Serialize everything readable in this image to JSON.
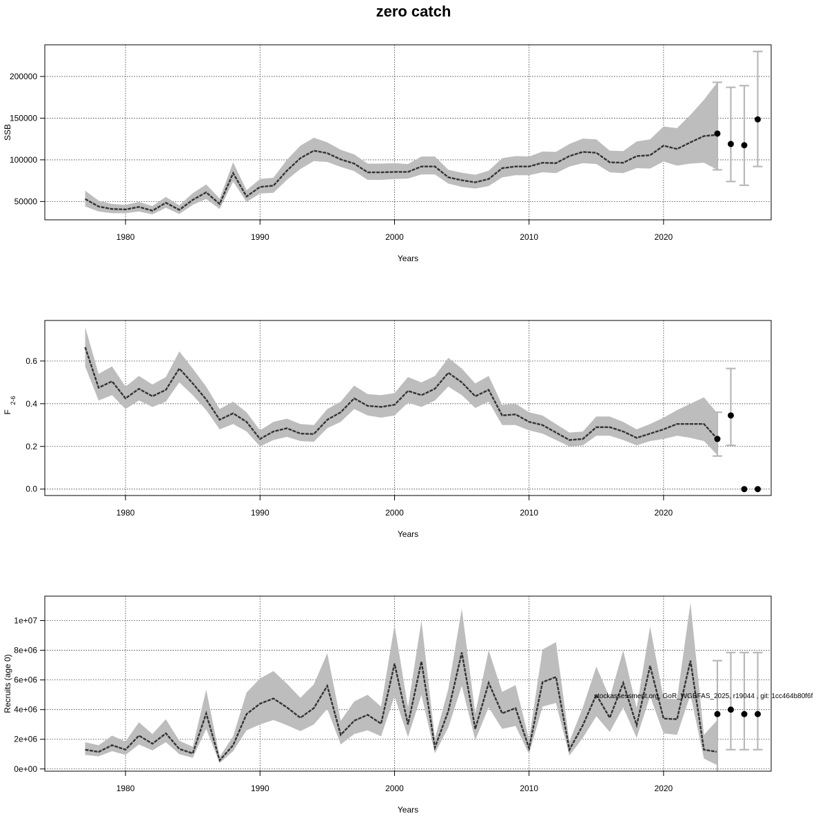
{
  "title": "zero catch",
  "watermark": "stockassessment.org, GoR_WGBFAS_2025, r19044 , git: 1cc464b80f6f",
  "colors": {
    "band": "#bdbdbd",
    "line": "#333333",
    "errorbar": "#b8b8b8",
    "point": "#000000",
    "grid": "#333333"
  },
  "chart_data": [
    {
      "type": "line",
      "xlabel": "Years",
      "ylabel": "SSB",
      "xlim": [
        1974,
        2028
      ],
      "ylim": [
        28000,
        238000
      ],
      "xticks": [
        1980,
        1990,
        2000,
        2010,
        2020
      ],
      "yticks": [
        50000,
        100000,
        150000,
        200000
      ],
      "ytick_labels": [
        "50000",
        "100000",
        "150000",
        "200000"
      ],
      "grid": true,
      "years": [
        1977,
        1978,
        1979,
        1980,
        1981,
        1982,
        1983,
        1984,
        1985,
        1986,
        1987,
        1988,
        1989,
        1990,
        1991,
        1992,
        1993,
        1994,
        1995,
        1996,
        1997,
        1998,
        1999,
        2000,
        2001,
        2002,
        2003,
        2004,
        2005,
        2006,
        2007,
        2008,
        2009,
        2010,
        2011,
        2012,
        2013,
        2014,
        2015,
        2016,
        2017,
        2018,
        2019,
        2020,
        2021,
        2022,
        2023,
        2024
      ],
      "estimate": [
        53000,
        44000,
        41000,
        40500,
        43500,
        39000,
        48500,
        40000,
        52000,
        61000,
        47000,
        84000,
        56000,
        67500,
        69000,
        87000,
        102000,
        111000,
        108000,
        100500,
        95500,
        85000,
        85000,
        85500,
        85500,
        92000,
        92000,
        79000,
        75500,
        73000,
        77000,
        90000,
        92000,
        92000,
        96500,
        96000,
        104500,
        109500,
        108500,
        97000,
        96500,
        104500,
        105500,
        117000,
        113000,
        121000,
        128500,
        130000
      ],
      "lower": [
        44000,
        38000,
        36000,
        36000,
        38000,
        34500,
        42500,
        35000,
        46000,
        53000,
        41000,
        74000,
        49500,
        59500,
        60500,
        76000,
        89000,
        98500,
        97500,
        91500,
        86500,
        76000,
        76000,
        77000,
        77500,
        82500,
        82500,
        71500,
        67500,
        65500,
        68500,
        79000,
        81500,
        81500,
        85000,
        84000,
        92000,
        96000,
        95000,
        85000,
        84000,
        90000,
        89500,
        98000,
        93000,
        95500,
        96500,
        88000
      ],
      "upper": [
        63000,
        51000,
        47000,
        46000,
        49500,
        44500,
        55500,
        45500,
        60000,
        70500,
        53500,
        97000,
        63500,
        77000,
        78500,
        100000,
        117000,
        126500,
        121000,
        112000,
        106500,
        95500,
        95500,
        96000,
        95000,
        104000,
        104000,
        88000,
        84500,
        82000,
        87000,
        102000,
        104500,
        104000,
        110000,
        109500,
        119000,
        125500,
        124500,
        111000,
        110500,
        122000,
        124500,
        140000,
        138000,
        154000,
        172000,
        193000
      ],
      "projections": [
        {
          "year": 2024,
          "value": 131500,
          "lower": 88000,
          "upper": 193000
        },
        {
          "year": 2025,
          "value": 119000,
          "lower": 74000,
          "upper": 187000
        },
        {
          "year": 2026,
          "value": 117500,
          "lower": 69500,
          "upper": 189000
        },
        {
          "year": 2027,
          "value": 148500,
          "lower": 92000,
          "upper": 230000
        }
      ]
    },
    {
      "type": "line",
      "xlabel": "Years",
      "ylabel": "F",
      "ylabel_sub": "2-6",
      "xlim": [
        1974,
        2028
      ],
      "ylim": [
        -0.03,
        0.79
      ],
      "xticks": [
        1980,
        1990,
        2000,
        2010,
        2020
      ],
      "yticks": [
        0.0,
        0.2,
        0.4,
        0.6
      ],
      "ytick_labels": [
        "0.0",
        "0.2",
        "0.4",
        "0.6"
      ],
      "grid": true,
      "years": [
        1977,
        1978,
        1979,
        1980,
        1981,
        1982,
        1983,
        1984,
        1985,
        1986,
        1987,
        1988,
        1989,
        1990,
        1991,
        1992,
        1993,
        1994,
        1995,
        1996,
        1997,
        1998,
        1999,
        2000,
        2001,
        2002,
        2003,
        2004,
        2005,
        2006,
        2007,
        2008,
        2009,
        2010,
        2011,
        2012,
        2013,
        2014,
        2015,
        2016,
        2017,
        2018,
        2019,
        2020,
        2021,
        2022,
        2023,
        2024
      ],
      "estimate": [
        0.665,
        0.475,
        0.505,
        0.425,
        0.47,
        0.435,
        0.465,
        0.565,
        0.495,
        0.42,
        0.325,
        0.355,
        0.315,
        0.235,
        0.27,
        0.285,
        0.26,
        0.258,
        0.325,
        0.36,
        0.425,
        0.39,
        0.385,
        0.395,
        0.46,
        0.44,
        0.47,
        0.545,
        0.5,
        0.435,
        0.465,
        0.345,
        0.35,
        0.315,
        0.3,
        0.265,
        0.23,
        0.235,
        0.29,
        0.29,
        0.27,
        0.24,
        0.26,
        0.28,
        0.305,
        0.305,
        0.305,
        0.235
      ],
      "lower": [
        0.575,
        0.415,
        0.44,
        0.375,
        0.415,
        0.385,
        0.41,
        0.5,
        0.44,
        0.37,
        0.28,
        0.305,
        0.27,
        0.2,
        0.23,
        0.245,
        0.225,
        0.222,
        0.285,
        0.315,
        0.375,
        0.345,
        0.335,
        0.345,
        0.405,
        0.385,
        0.415,
        0.48,
        0.44,
        0.38,
        0.41,
        0.3,
        0.3,
        0.275,
        0.26,
        0.23,
        0.2,
        0.205,
        0.25,
        0.25,
        0.23,
        0.205,
        0.225,
        0.235,
        0.25,
        0.24,
        0.225,
        0.16
      ],
      "upper": [
        0.76,
        0.54,
        0.575,
        0.48,
        0.53,
        0.49,
        0.525,
        0.645,
        0.565,
        0.48,
        0.375,
        0.41,
        0.36,
        0.275,
        0.315,
        0.33,
        0.305,
        0.3,
        0.375,
        0.41,
        0.485,
        0.445,
        0.44,
        0.45,
        0.525,
        0.5,
        0.53,
        0.615,
        0.565,
        0.495,
        0.53,
        0.395,
        0.4,
        0.36,
        0.345,
        0.305,
        0.265,
        0.27,
        0.34,
        0.34,
        0.315,
        0.28,
        0.305,
        0.335,
        0.37,
        0.4,
        0.43,
        0.355
      ],
      "projections": [
        {
          "year": 2024,
          "value": 0.235,
          "lower": 0.155,
          "upper": 0.36
        },
        {
          "year": 2025,
          "value": 0.345,
          "lower": 0.205,
          "upper": 0.565
        },
        {
          "year": 2026,
          "value": 0.0,
          "lower": null,
          "upper": null
        },
        {
          "year": 2027,
          "value": 0.0,
          "lower": null,
          "upper": null
        }
      ]
    },
    {
      "type": "line",
      "xlabel": "Years",
      "ylabel": "Recruits (age 0)",
      "xlim": [
        1974,
        2028
      ],
      "ylim": [
        -150000,
        11650000
      ],
      "xticks": [
        1980,
        1990,
        2000,
        2010,
        2020
      ],
      "yticks": [
        0,
        2000000,
        4000000,
        6000000,
        8000000,
        10000000
      ],
      "ytick_labels": [
        "0e+00",
        "2e+06",
        "4e+06",
        "6e+06",
        "8e+06",
        "1e+07"
      ],
      "grid": true,
      "years": [
        1977,
        1978,
        1979,
        1980,
        1981,
        1982,
        1983,
        1984,
        1985,
        1986,
        1987,
        1988,
        1989,
        1990,
        1991,
        1992,
        1993,
        1994,
        1995,
        1996,
        1997,
        1998,
        1999,
        2000,
        2001,
        2002,
        2003,
        2004,
        2005,
        2006,
        2007,
        2008,
        2009,
        2010,
        2011,
        2012,
        2013,
        2014,
        2015,
        2016,
        2017,
        2018,
        2019,
        2020,
        2021,
        2022,
        2023,
        2024
      ],
      "estimate": [
        1300000,
        1150000,
        1600000,
        1300000,
        2250000,
        1700000,
        2400000,
        1350000,
        1050000,
        3750000,
        580000,
        1600000,
        3700000,
        4400000,
        4750000,
        4150000,
        3450000,
        4100000,
        5600000,
        2300000,
        3250000,
        3650000,
        3050000,
        7100000,
        3000000,
        7250000,
        1450000,
        3900000,
        7850000,
        2700000,
        5800000,
        3750000,
        4100000,
        1400000,
        5850000,
        6200000,
        1300000,
        2950000,
        5000000,
        3450000,
        5800000,
        2950000,
        6950000,
        3400000,
        3350000,
        7300000,
        1300000,
        1150000
      ],
      "lower": [
        950000,
        850000,
        1200000,
        950000,
        1650000,
        1250000,
        1800000,
        1000000,
        750000,
        2700000,
        400000,
        1200000,
        2600000,
        3000000,
        3300000,
        2950000,
        2550000,
        3000000,
        4050000,
        1650000,
        2350000,
        2600000,
        2200000,
        4900000,
        2150000,
        5000000,
        1050000,
        2800000,
        5600000,
        1950000,
        4150000,
        2700000,
        2900000,
        1000000,
        4200000,
        4450000,
        900000,
        2100000,
        3550000,
        2500000,
        4150000,
        2100000,
        4900000,
        2400000,
        2300000,
        5000000,
        700000,
        250000
      ],
      "upper": [
        1800000,
        1600000,
        2250000,
        1850000,
        3150000,
        2350000,
        3350000,
        1900000,
        1500000,
        5350000,
        820000,
        2200000,
        5150000,
        6100000,
        6600000,
        5750000,
        4800000,
        5700000,
        7800000,
        3250000,
        4550000,
        5000000,
        4200000,
        9700000,
        4150000,
        10000000,
        2050000,
        5400000,
        10800000,
        3750000,
        8000000,
        5200000,
        5650000,
        2000000,
        8050000,
        8550000,
        1850000,
        4150000,
        6900000,
        4800000,
        8000000,
        4100000,
        9600000,
        4750000,
        4700000,
        11200000,
        2300000,
        3300000
      ],
      "projections": [
        {
          "year": 2024,
          "value": 3700000,
          "lower": null,
          "upper": 7300000
        },
        {
          "year": 2025,
          "value": 4000000,
          "lower": 1300000,
          "upper": 7850000
        },
        {
          "year": 2026,
          "value": 3700000,
          "lower": 1300000,
          "upper": 7850000
        },
        {
          "year": 2027,
          "value": 3700000,
          "lower": 1300000,
          "upper": 7850000
        }
      ]
    }
  ]
}
